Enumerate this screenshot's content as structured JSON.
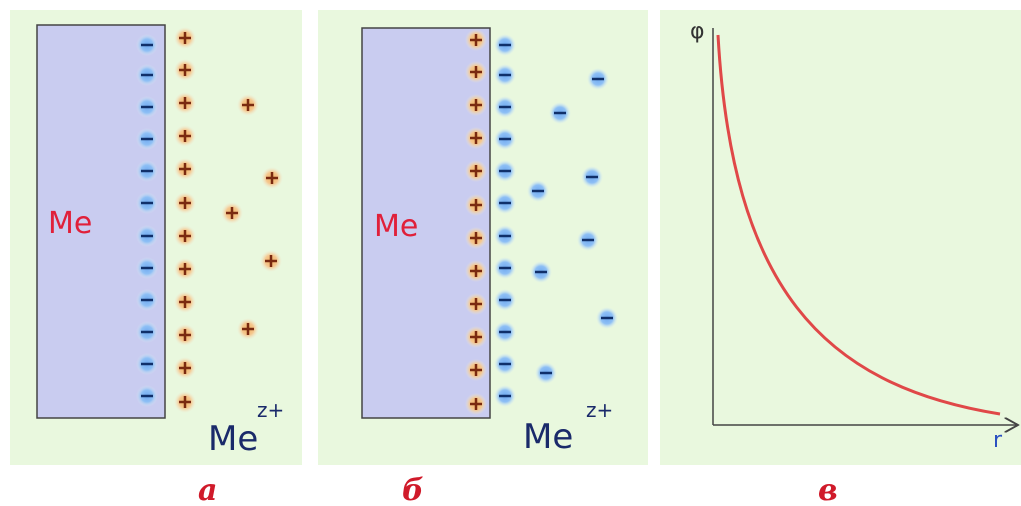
{
  "panels": [
    {
      "metal_label": "Me",
      "ion_label": "Me",
      "ion_charge": "z+",
      "caption": "а"
    },
    {
      "metal_label": "Me",
      "ion_label": "Me",
      "ion_charge": "z+",
      "caption": "б"
    },
    {
      "y_axis_label": "φ",
      "x_axis_label": "r",
      "caption": "в"
    }
  ]
}
